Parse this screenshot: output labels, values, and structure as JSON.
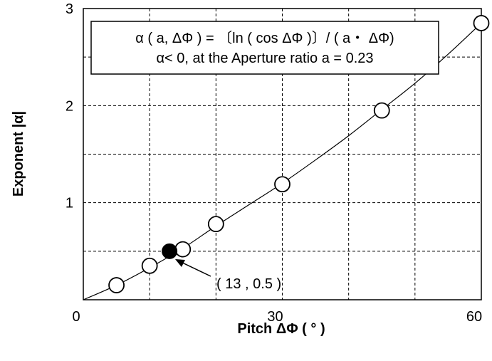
{
  "chart_data": {
    "type": "scatter",
    "xlabel": "Pitch  ΔΦ ( ° )",
    "ylabel": "Exponent |α|",
    "xlim": [
      0,
      60
    ],
    "ylim": [
      0,
      3
    ],
    "xticks": [
      0,
      30,
      60
    ],
    "xtick_labels": [
      "0",
      "30",
      "60"
    ],
    "xgrid": [
      10,
      20,
      30,
      40,
      50
    ],
    "yticks": [
      1,
      2,
      3
    ],
    "ytick_labels": [
      "1",
      "2",
      "3"
    ],
    "ygrid": [
      0.5,
      1,
      1.5,
      2,
      2.5
    ],
    "grid": "dashed",
    "formula_line1": "α ( a, ΔΦ ) = 〔ln ( cos ΔΦ )〕/ ( a・ ΔΦ)",
    "formula_line2": "α< 0, at the Aperture ratio a = 0.23",
    "points": [
      {
        "x": 5,
        "y": 0.15
      },
      {
        "x": 10,
        "y": 0.35
      },
      {
        "x": 15,
        "y": 0.52
      },
      {
        "x": 20,
        "y": 0.78
      },
      {
        "x": 30,
        "y": 1.19
      },
      {
        "x": 45,
        "y": 1.95
      },
      {
        "x": 60,
        "y": 2.85
      }
    ],
    "highlight_point": {
      "x": 13,
      "y": 0.5,
      "label": "( 13 , 0.5 )"
    },
    "curve": [
      [
        0,
        0
      ],
      [
        5,
        0.15
      ],
      [
        10,
        0.33
      ],
      [
        15,
        0.53
      ],
      [
        20,
        0.76
      ],
      [
        25,
        0.98
      ],
      [
        30,
        1.2
      ],
      [
        35,
        1.44
      ],
      [
        40,
        1.69
      ],
      [
        45,
        1.96
      ],
      [
        50,
        2.23
      ],
      [
        55,
        2.53
      ],
      [
        60,
        2.85
      ]
    ]
  }
}
